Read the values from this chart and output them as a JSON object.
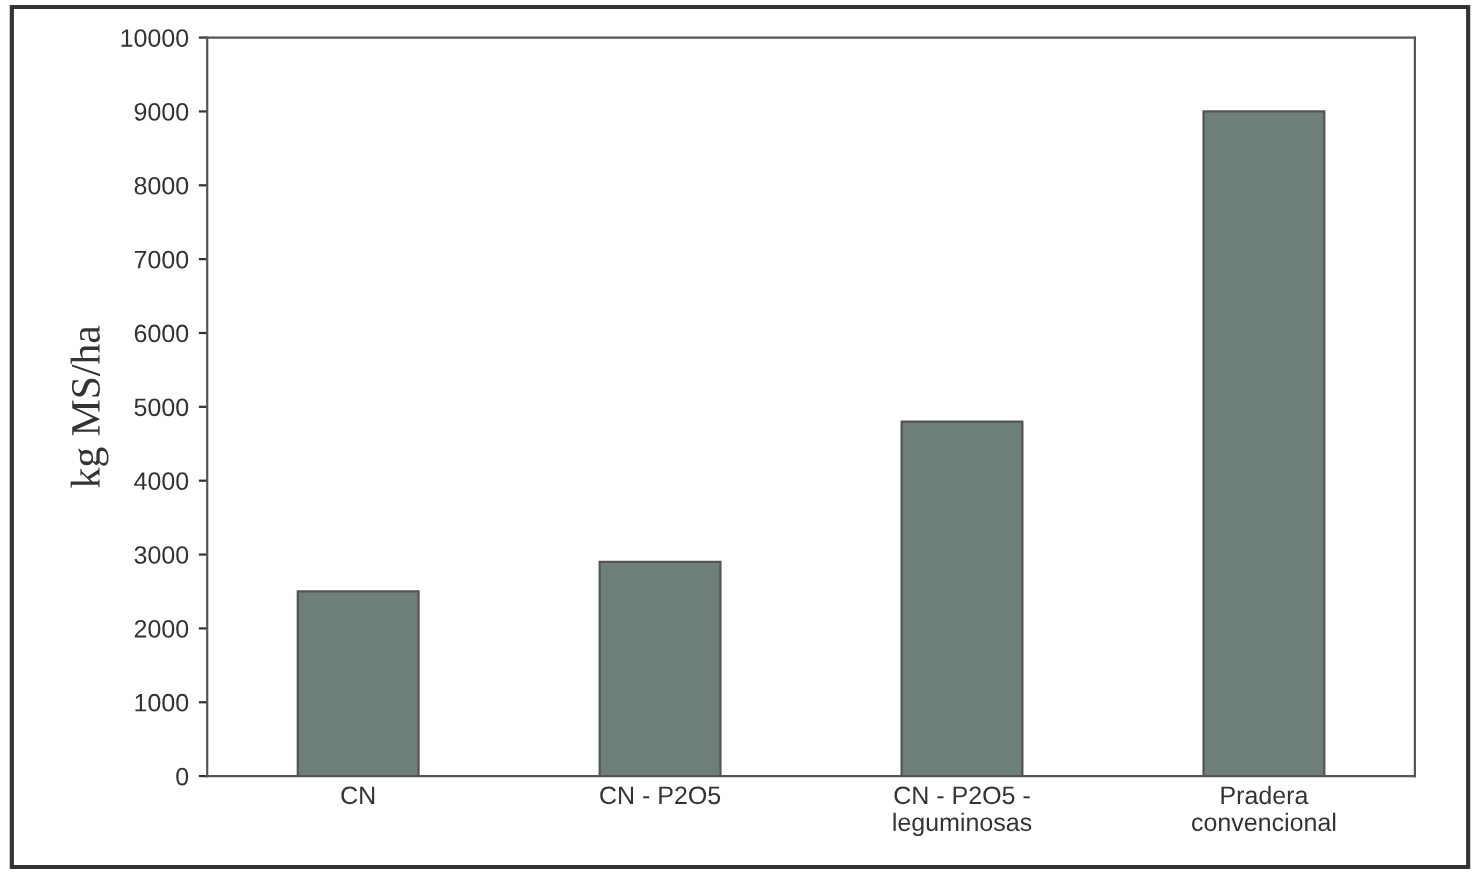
{
  "chart_data": {
    "type": "bar",
    "ylabel": "kg MS/ha",
    "categories": [
      "CN",
      "CN - P2O5",
      "CN - P2O5 -\nleguminosas",
      "Pradera\nconvencional"
    ],
    "values": [
      2500,
      2900,
      4800,
      9000
    ],
    "color": "#6e7e79",
    "ylim": [
      0,
      10000
    ],
    "yticks": [
      0,
      1000,
      2000,
      3000,
      4000,
      5000,
      6000,
      7000,
      8000,
      9000,
      10000
    ],
    "grid": false,
    "legend": false
  }
}
